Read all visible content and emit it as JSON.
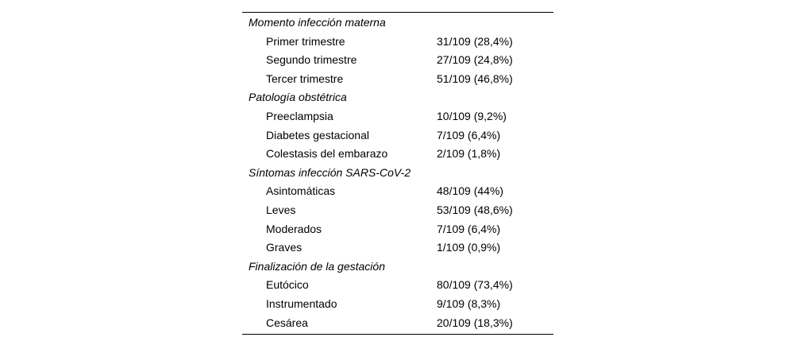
{
  "table": {
    "rule_color": "#000000",
    "text_color": "#000000",
    "background_color": "#ffffff",
    "sections": [
      {
        "label": "Momento infección materna",
        "rows": [
          {
            "label": "Primer trimestre",
            "value": "31/109 (28,4%)"
          },
          {
            "label": "Segundo trimestre",
            "value": "27/109 (24,8%)"
          },
          {
            "label": "Tercer trimestre",
            "value": "51/109 (46,8%)"
          }
        ]
      },
      {
        "label": "Patología obstétrica",
        "rows": [
          {
            "label": "Preeclampsia",
            "value": "10/109 (9,2%)"
          },
          {
            "label": "Diabetes gestacional",
            "value": "7/109 (6,4%)"
          },
          {
            "label": "Colestasis del embarazo",
            "value": "2/109 (1,8%)"
          }
        ]
      },
      {
        "label": "Síntomas infección SARS-CoV-2",
        "rows": [
          {
            "label": "Asintomáticas",
            "value": "48/109 (44%)"
          },
          {
            "label": "Leves",
            "value": "53/109 (48,6%)"
          },
          {
            "label": "Moderados",
            "value": "7/109 (6,4%)"
          },
          {
            "label": "Graves",
            "value": "1/109 (0,9%)"
          }
        ]
      },
      {
        "label": "Finalización de la gestación",
        "rows": [
          {
            "label": "Eutócico",
            "value": "80/109 (73,4%)"
          },
          {
            "label": "Instrumentado",
            "value": "9/109 (8,3%)"
          },
          {
            "label": "Cesárea",
            "value": "20/109 (18,3%)"
          }
        ]
      }
    ]
  }
}
